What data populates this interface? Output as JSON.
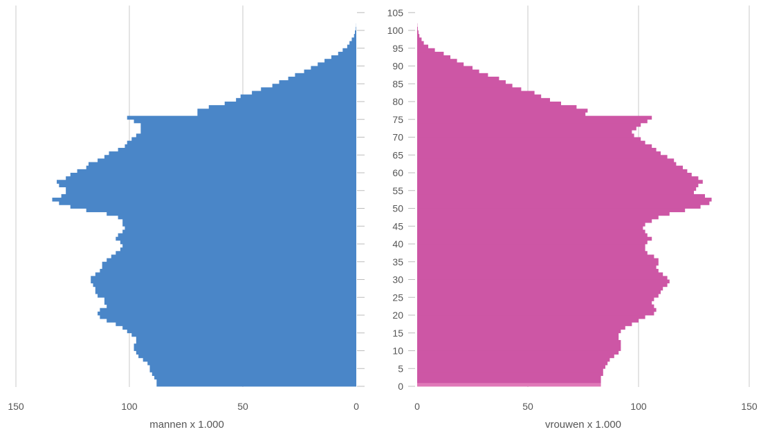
{
  "chart_data": {
    "type": "bar",
    "orientation": "horizontal-population-pyramid",
    "age_ticks": [
      0,
      5,
      10,
      15,
      20,
      25,
      30,
      35,
      40,
      45,
      50,
      55,
      60,
      65,
      70,
      75,
      80,
      85,
      90,
      95,
      100,
      105
    ],
    "age_tick_labels": [
      "0",
      "5",
      "10",
      "15",
      "20",
      "25",
      "30",
      "35",
      "40",
      "45",
      "50",
      "55",
      "60",
      "65",
      "70",
      "75",
      "80",
      "85",
      "90",
      "95",
      "100",
      "105"
    ],
    "left_axis": {
      "label": "mannen x 1.000",
      "ticks": [
        150,
        100,
        50,
        0
      ],
      "tick_labels": [
        "150",
        "100",
        "50",
        "0"
      ],
      "xlim": [
        0,
        150
      ]
    },
    "right_axis": {
      "label": "vrouwen x 1.000",
      "ticks": [
        0,
        50,
        100,
        150
      ],
      "tick_labels": [
        "0",
        "50",
        "100",
        "150"
      ],
      "xlim": [
        0,
        150
      ]
    },
    "grid": true,
    "categories": [
      "0",
      "1",
      "2",
      "3",
      "4",
      "5",
      "6",
      "7",
      "8",
      "9",
      "10",
      "11",
      "12",
      "13",
      "14",
      "15",
      "16",
      "17",
      "18",
      "19",
      "20",
      "21",
      "22",
      "23",
      "24",
      "25",
      "26",
      "27",
      "28",
      "29",
      "30",
      "31",
      "32",
      "33",
      "34",
      "35",
      "36",
      "37",
      "38",
      "39",
      "40",
      "41",
      "42",
      "43",
      "44",
      "45",
      "46",
      "47",
      "48",
      "49",
      "50",
      "51",
      "52",
      "53",
      "54",
      "55",
      "56",
      "57",
      "58",
      "59",
      "60",
      "61",
      "62",
      "63",
      "64",
      "65",
      "66",
      "67",
      "68",
      "69",
      "70",
      "71",
      "72",
      "73",
      "74",
      "75",
      "76",
      "77",
      "78",
      "79",
      "80",
      "81",
      "82",
      "83",
      "84",
      "85",
      "86",
      "87",
      "88",
      "89",
      "90",
      "91",
      "92",
      "93",
      "94",
      "95",
      "96",
      "97",
      "98",
      "99",
      "100",
      "101",
      "102",
      "103",
      "104",
      "105"
    ],
    "series": [
      {
        "side": "left",
        "color": "#4a86c8",
        "values": [
          88,
          88,
          89,
          90,
          91,
          91,
          92,
          94,
          96,
          97,
          98,
          98,
          97,
          97,
          99,
          101,
          103,
          106,
          110,
          113,
          114,
          113,
          110,
          111,
          111,
          114,
          115,
          115,
          116,
          117,
          117,
          115,
          113,
          112,
          112,
          110,
          108,
          106,
          104,
          103,
          104,
          106,
          105,
          103,
          102,
          103,
          103,
          105,
          110,
          119,
          126,
          131,
          134,
          130,
          128,
          128,
          131,
          132,
          128,
          126,
          123,
          119,
          118,
          114,
          111,
          109,
          105,
          102,
          101,
          99,
          97,
          95,
          95,
          95,
          98,
          101,
          70,
          70,
          65,
          58,
          53,
          51,
          46,
          42,
          37,
          34,
          30,
          27,
          23,
          20,
          17,
          14,
          11,
          8,
          6,
          4,
          3,
          2,
          1,
          0.6,
          0.2,
          0.05,
          0,
          0,
          0,
          0
        ],
        "special_bar": {
          "age": 0,
          "value": 88
        }
      },
      {
        "side": "right",
        "color": "#cd56a5",
        "values": [
          83,
          83,
          83,
          84,
          84,
          85,
          86,
          87,
          89,
          91,
          92,
          92,
          92,
          91,
          91,
          92,
          94,
          97,
          100,
          103,
          107,
          108,
          107,
          106,
          107,
          109,
          110,
          111,
          113,
          114,
          113,
          111,
          109,
          108,
          109,
          109,
          107,
          104,
          103,
          103,
          104,
          106,
          104,
          103,
          102,
          103,
          106,
          109,
          114,
          121,
          128,
          132,
          133,
          130,
          125,
          126,
          127,
          129,
          127,
          124,
          122,
          120,
          117,
          116,
          113,
          110,
          108,
          106,
          103,
          101,
          98,
          97,
          99,
          101,
          104,
          106,
          76,
          77,
          72,
          65,
          60,
          56,
          53,
          47,
          43,
          40,
          37,
          32,
          28,
          25,
          21,
          18,
          15,
          12,
          8,
          5,
          3,
          2,
          1,
          0.6,
          0.3,
          0.1,
          0,
          0,
          0,
          0
        ],
        "special_bar": {
          "age": 0,
          "value": 83,
          "color": "#e079b8"
        }
      }
    ]
  }
}
